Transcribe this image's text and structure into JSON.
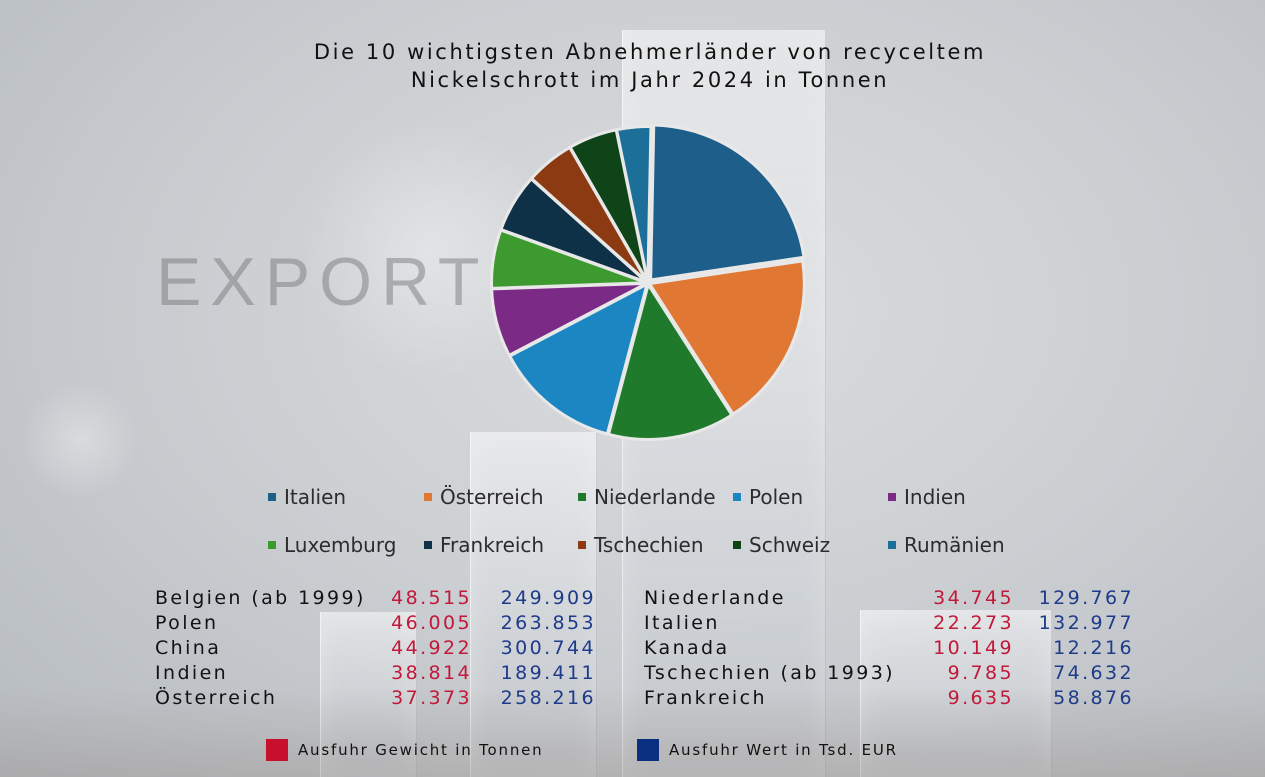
{
  "page": {
    "title_line1": "Die 10 wichtigsten Abnehmerländer von recyceltem",
    "title_line2": "Nickelschrott im Jahr 2024 in Tonnen",
    "watermark": "EXPORT"
  },
  "chart_data": {
    "type": "pie",
    "title": "Die 10 wichtigsten Abnehmerländer von recyceltem Nickelschrott im Jahr 2024 in Tonnen",
    "slices": [
      {
        "label": "Italien",
        "value": 22,
        "color": "#1e5e8a"
      },
      {
        "label": "Österreich",
        "value": 18,
        "color": "#e07833"
      },
      {
        "label": "Niederlande",
        "value": 13,
        "color": "#1f7a2c"
      },
      {
        "label": "Polen",
        "value": 13,
        "color": "#1b86c2"
      },
      {
        "label": "Indien",
        "value": 7,
        "color": "#7b2a86"
      },
      {
        "label": "Luxemburg",
        "value": 6,
        "color": "#3d9a2e"
      },
      {
        "label": "Frankreich",
        "value": 6,
        "color": "#0f3147"
      },
      {
        "label": "Tschechien",
        "value": 5,
        "color": "#8b3a11"
      },
      {
        "label": "Schweiz",
        "value": 5,
        "color": "#0f4419"
      },
      {
        "label": "Rumänien",
        "value": 3.5,
        "color": "#1c6f99"
      }
    ],
    "legend_position": "bottom"
  },
  "table": {
    "rows": [
      {
        "country": "Belgien (ab 1999)",
        "weight": "48.515",
        "value": "249.909"
      },
      {
        "country": "Polen",
        "weight": "46.005",
        "value": "263.853"
      },
      {
        "country": "China",
        "weight": "44.922",
        "value": "300.744"
      },
      {
        "country": "Indien",
        "weight": "38.814",
        "value": "189.411"
      },
      {
        "country": "Österreich",
        "weight": "37.373",
        "value": "258.216"
      },
      {
        "country": "Niederlande",
        "weight": "34.745",
        "value": "129.767"
      },
      {
        "country": "Italien",
        "weight": "22.273",
        "value": "132.977"
      },
      {
        "country": "Kanada",
        "weight": "10.149",
        "value": "12.216"
      },
      {
        "country": "Tschechien (ab 1993)",
        "weight": "9.785",
        "value": "74.632"
      },
      {
        "country": "Frankreich",
        "weight": "9.635",
        "value": "58.876"
      }
    ],
    "key": [
      {
        "label": "Ausfuhr Gewicht in Tonnen",
        "color": "#c8102e"
      },
      {
        "label": "Ausfuhr Wert in Tsd. EUR",
        "color": "#0a2f80"
      }
    ]
  }
}
